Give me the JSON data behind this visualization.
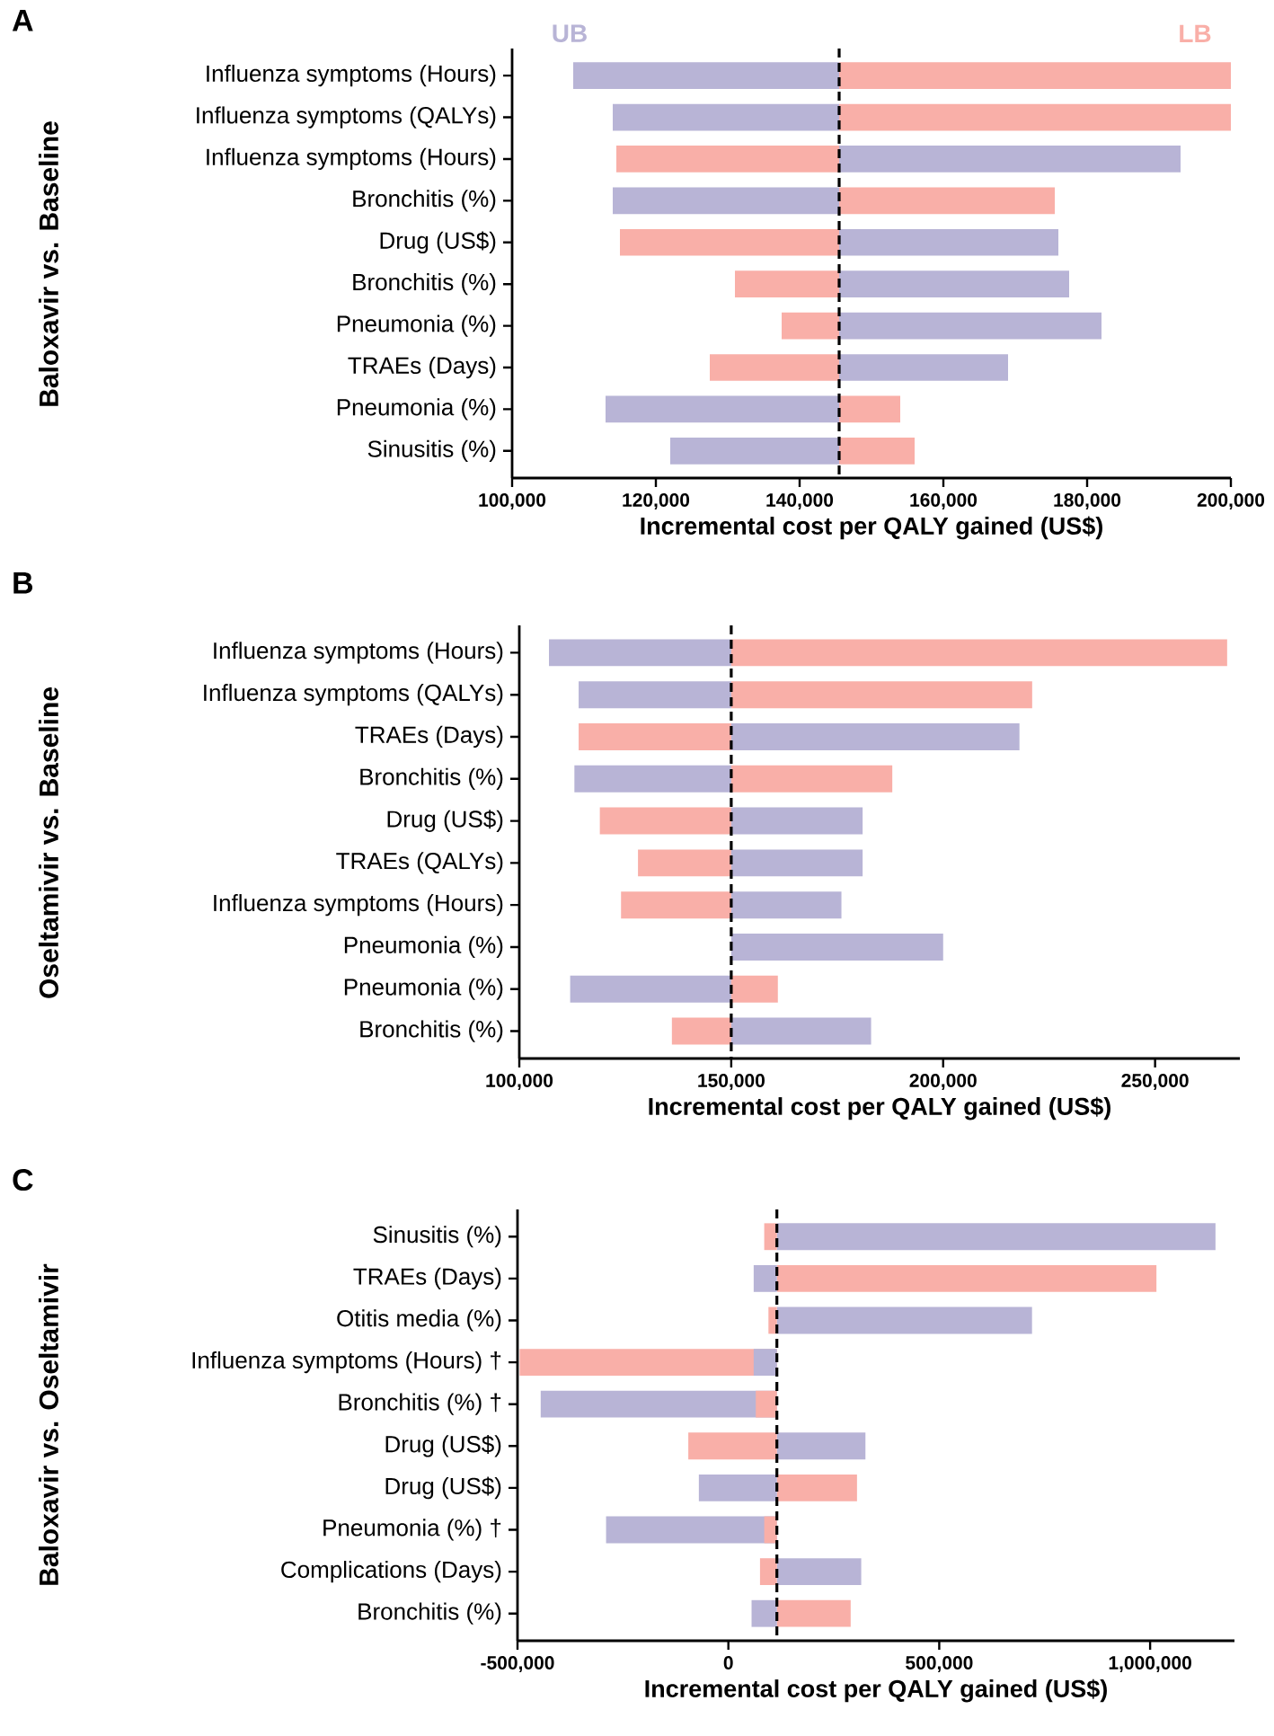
{
  "chart_data": [
    {
      "type": "bar",
      "orientation": "horizontal",
      "title": "A",
      "ylabel": "Baloxavir vs. Baseline",
      "xlabel": "Incremental cost per QALY gained (US$)",
      "categories": [
        "Influenza symptoms (Hours)",
        "Influenza symptoms (QALYs)",
        "Influenza symptoms (Hours)",
        "Bronchitis (%)",
        "Drug (US$)",
        "Bronchitis (%)",
        "Pneumonia (%)",
        "TRAEs (Days)",
        "Pneumonia (%)",
        "Sinusitis (%)"
      ],
      "series": [
        {
          "name": "UB",
          "color": "#b8b4d6",
          "base": [
            145500,
            145500,
            145500,
            145500,
            145500,
            145500,
            145500,
            145500,
            145500,
            145500
          ],
          "values": [
            -37000,
            -31500,
            47500,
            -31500,
            30500,
            32000,
            36500,
            23500,
            -32500,
            -23500
          ]
        },
        {
          "name": "LB",
          "color": "#f9afa8",
          "base": [
            145500,
            145500,
            145500,
            145500,
            145500,
            145500,
            145500,
            145500,
            145500,
            145500
          ],
          "values": [
            54500,
            54500,
            -31000,
            30000,
            -30500,
            -14500,
            -8000,
            -18000,
            8500,
            10500
          ]
        }
      ],
      "xlim": [
        100000,
        200000
      ],
      "xticks": [
        {
          "value": 100000,
          "label": "100,000"
        },
        {
          "value": 120000,
          "label": "120,000"
        },
        {
          "value": 140000,
          "label": "140,000"
        },
        {
          "value": 160000,
          "label": "160,000"
        },
        {
          "value": 180000,
          "label": "180,000"
        },
        {
          "value": 200000,
          "label": "200,000"
        }
      ],
      "ref_lines": [
        {
          "axis": "x",
          "value": 145500,
          "color": "#000000",
          "line_style": "dashed"
        }
      ]
    },
    {
      "type": "bar",
      "orientation": "horizontal",
      "title": "B",
      "ylabel": "Oseltamivir vs. Baseline",
      "xlabel": "Incremental cost per QALY gained (US$)",
      "categories": [
        "Influenza symptoms (Hours)",
        "Influenza symptoms (QALYs)",
        "TRAEs (Days)",
        "Bronchitis (%)",
        "Drug (US$)",
        "TRAEs (QALYs)",
        "Influenza symptoms (Hours)",
        "Pneumonia (%)",
        "Pneumonia (%)",
        "Bronchitis (%)"
      ],
      "series": [
        {
          "color": "#b8b4d6",
          "base": [
            150000,
            150000,
            150000,
            150000,
            150000,
            150000,
            150000,
            150000,
            150000,
            150000
          ],
          "values": [
            -43000,
            -36000,
            68000,
            -37000,
            31000,
            31000,
            26000,
            50000,
            -38000,
            33000
          ]
        },
        {
          "color": "#f9afa8",
          "base": [
            150000,
            150000,
            150000,
            150000,
            150000,
            150000,
            150000,
            null,
            150000,
            150000
          ],
          "values": [
            117000,
            71000,
            -36000,
            38000,
            -31000,
            -22000,
            -26000,
            null,
            11000,
            -14000
          ]
        }
      ],
      "xlim": [
        100000,
        270000
      ],
      "xticks": [
        {
          "value": 100000,
          "label": "100,000"
        },
        {
          "value": 150000,
          "label": "150,000"
        },
        {
          "value": 200000,
          "label": "200,000"
        },
        {
          "value": 250000,
          "label": "250,000"
        }
      ],
      "ref_lines": [
        {
          "axis": "x",
          "value": 150000,
          "color": "#000000",
          "line_style": "dashed"
        }
      ]
    },
    {
      "type": "bar",
      "orientation": "horizontal",
      "title": "C",
      "ylabel": "Baloxavir vs. Oseltamivir",
      "xlabel": "Incremental cost per QALY gained (US$)",
      "categories": [
        "Sinusitis (%)",
        "TRAEs (Days)",
        "Otitis media (%)",
        "Influenza symptoms (Hours) †",
        "Bronchitis (%) †",
        "Drug (US$)",
        "Drug (US$)",
        "Pneumonia (%) †",
        "Complications (Days)",
        "Bronchitis (%)"
      ],
      "series": [
        {
          "color": "#b8b4d6",
          "base": [
            115000,
            115000,
            115000,
            115000,
            115000,
            115000,
            115000,
            115000,
            115000,
            115000
          ],
          "values": [
            1040000,
            -55000,
            605000,
            -55000,
            -560000,
            210000,
            -185000,
            -405000,
            200000,
            -60000
          ]
        },
        {
          "color": "#f9afa8",
          "base": [
            115000,
            115000,
            115000,
            115000,
            115000,
            115000,
            115000,
            115000,
            115000,
            115000
          ],
          "values": [
            -30000,
            900000,
            -20000,
            -610000,
            -50000,
            -210000,
            190000,
            -30000,
            -40000,
            175000
          ]
        }
      ],
      "xlim": [
        -500000,
        1200000
      ],
      "xticks": [
        {
          "value": -500000,
          "label": "-500,000"
        },
        0,
        {
          "value": 500000,
          "label": "500,000"
        },
        {
          "value": 1000000,
          "label": "1,000,000"
        }
      ],
      "ref_lines": [
        {
          "axis": "x",
          "value": 115000,
          "color": "#000000",
          "line_style": "dashed"
        }
      ]
    }
  ]
}
